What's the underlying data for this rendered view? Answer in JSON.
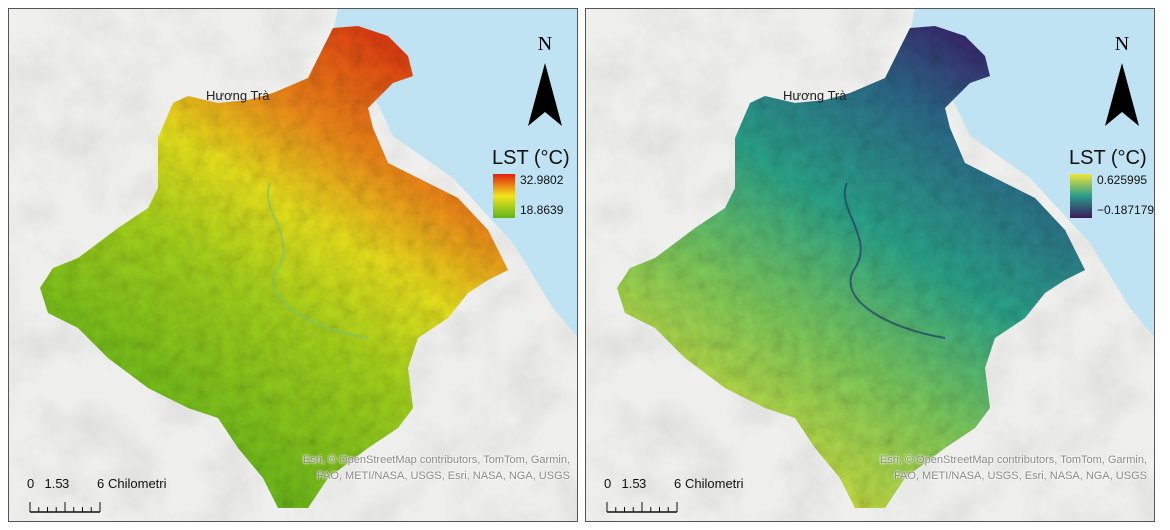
{
  "panels": [
    {
      "place_label": "Hương Trà",
      "north": "N",
      "legend_title": "LST (°C)",
      "legend_max": "32.9802",
      "legend_min": "18.8639",
      "scale_ticks": [
        "0",
        "1.5",
        "3",
        "6"
      ],
      "scale_unit": "Chilometri",
      "attribution": "Esri, © OpenStreetMap contributors, TomTom, Garmin, FAO, METI/NASA, USGS, Esri, NASA, NGA, USGS"
    },
    {
      "place_label": "Hương Trà",
      "north": "N",
      "legend_title": "LST (°C)",
      "legend_max": "0.625995",
      "legend_min": "−0.187179",
      "scale_ticks": [
        "0",
        "1.5",
        "3",
        "6"
      ],
      "scale_unit": "Chilometri",
      "attribution": "Esri, © OpenStreetMap contributors, TomTom, Garmin, FAO, METI/NASA, USGS, Esri, NASA, NGA, USGS"
    }
  ]
}
